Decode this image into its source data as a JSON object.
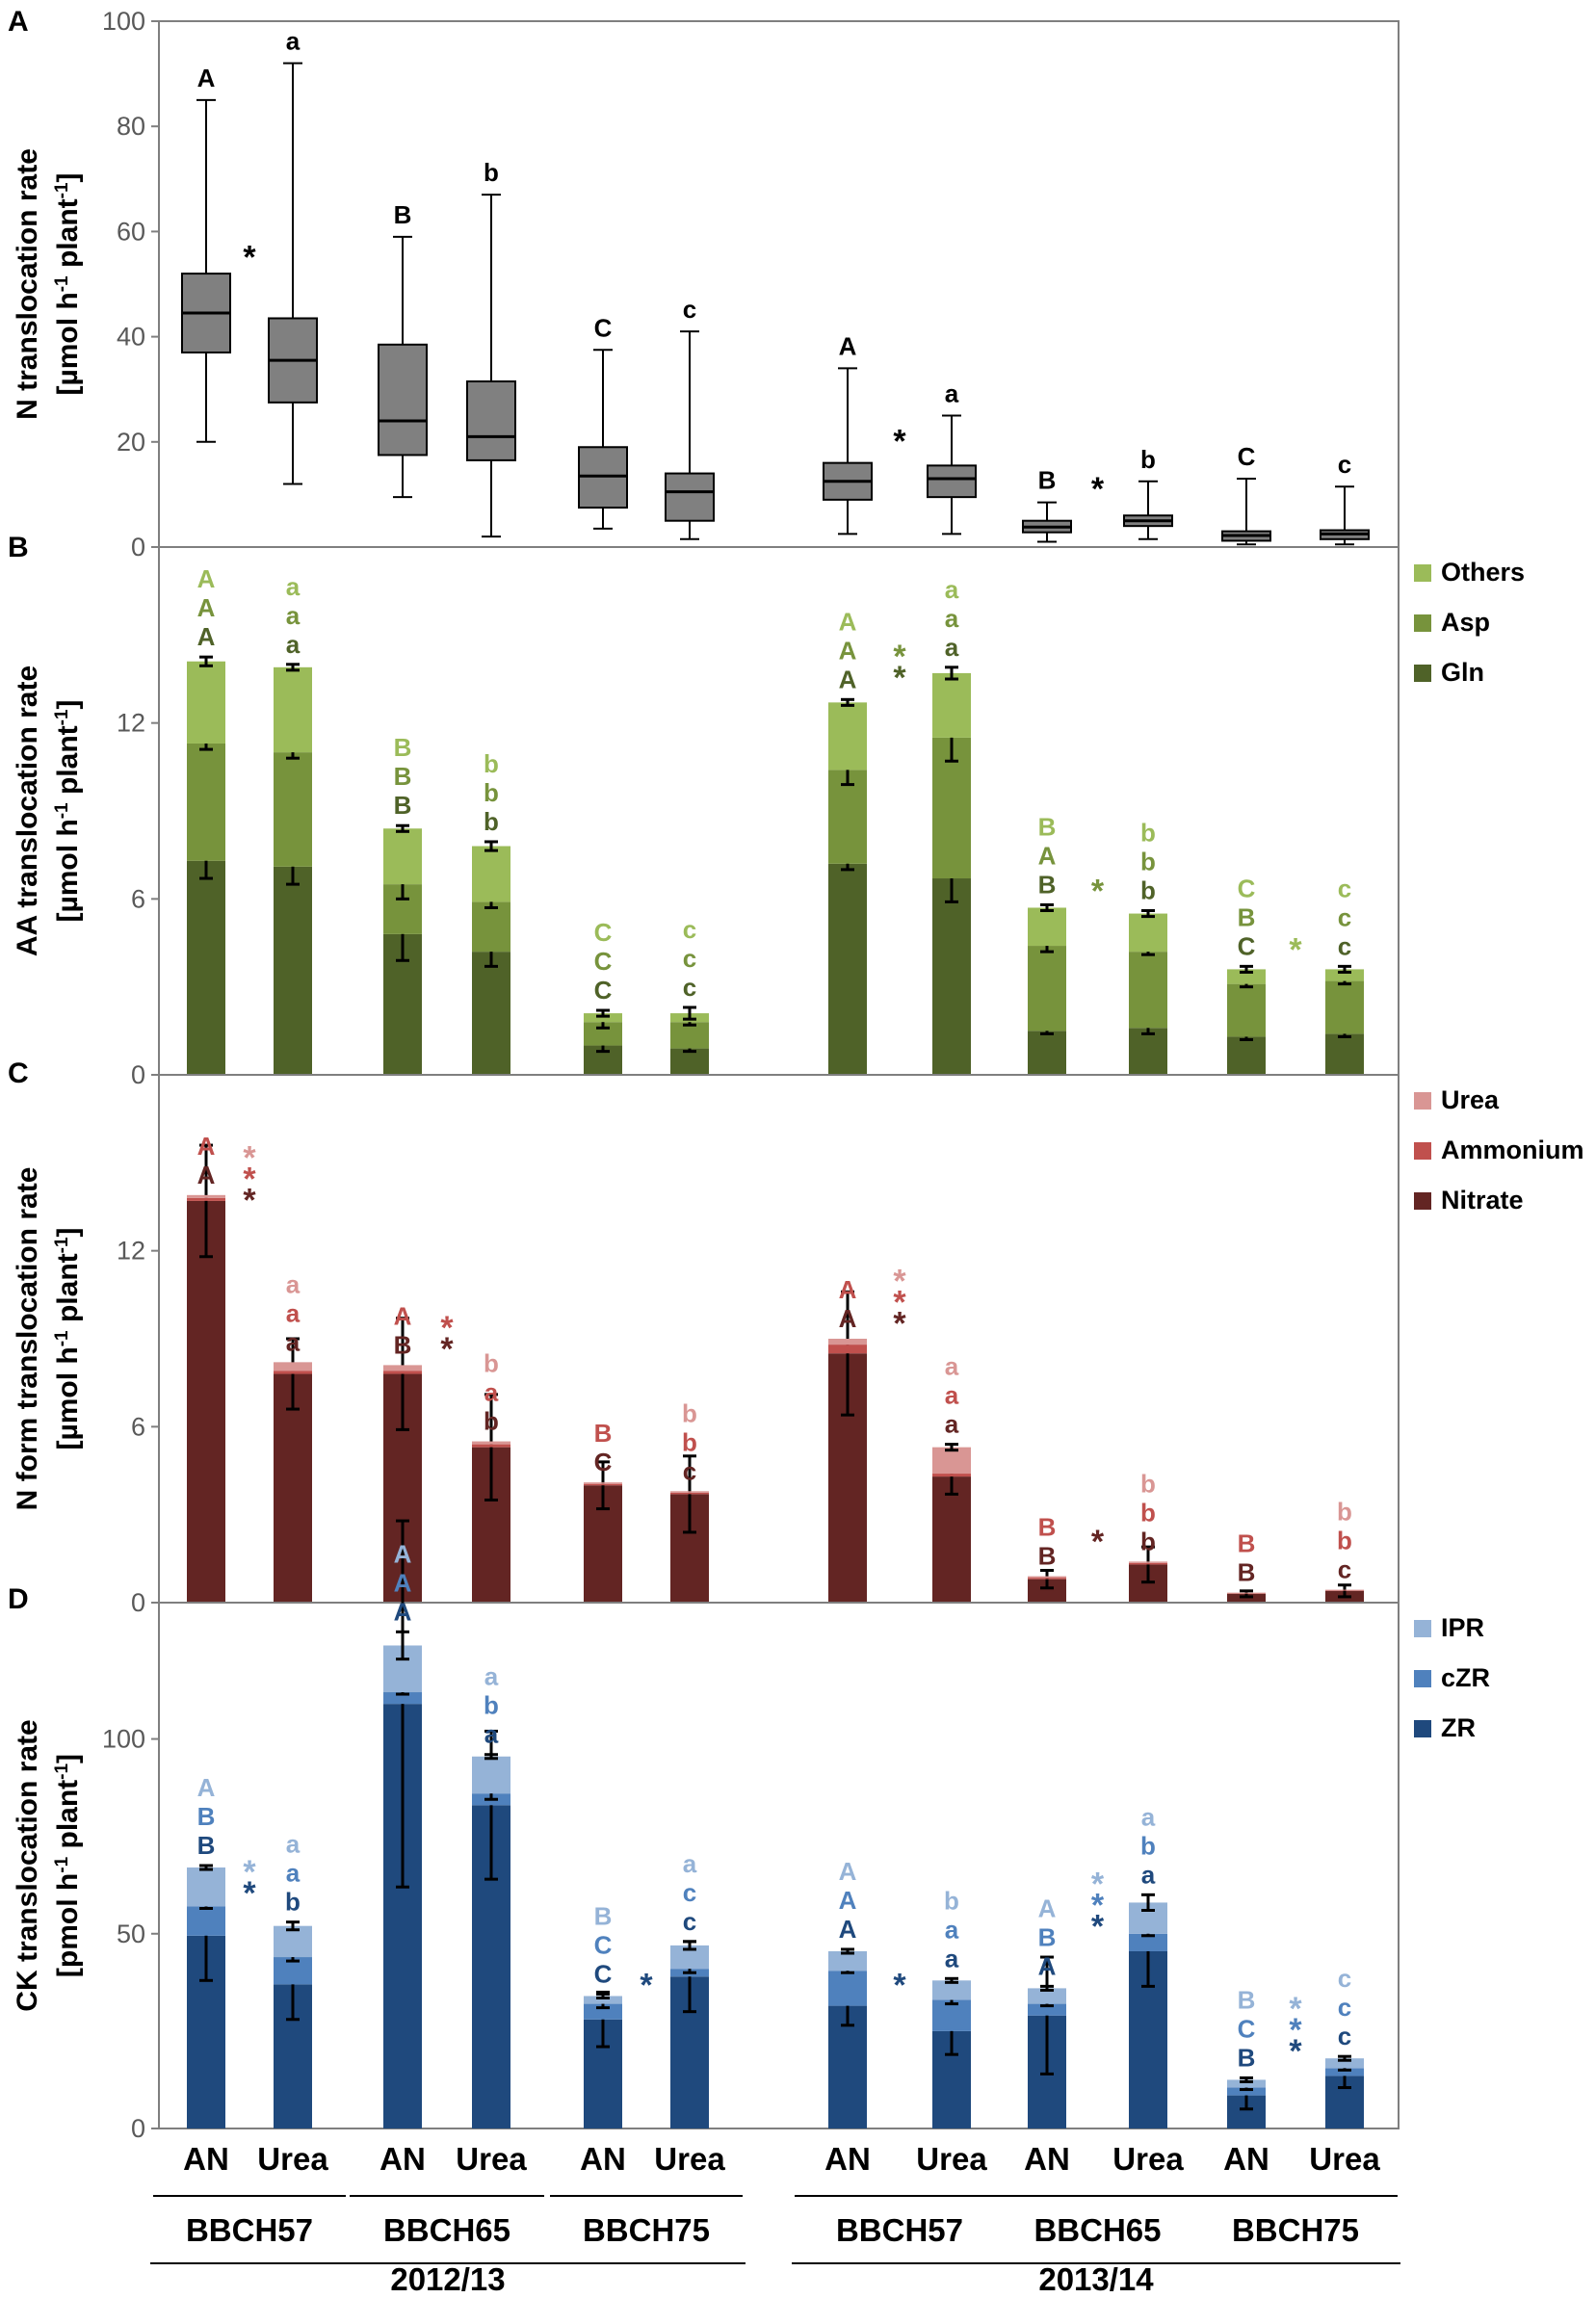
{
  "x_groups": {
    "treatments": [
      "AN",
      "Urea",
      "AN",
      "Urea",
      "AN",
      "Urea",
      "AN",
      "Urea",
      "AN",
      "Urea",
      "AN",
      "Urea"
    ],
    "stages": [
      "BBCH57",
      "BBCH65",
      "BBCH75",
      "BBCH57",
      "BBCH65",
      "BBCH75"
    ],
    "years": [
      "2012/13",
      "2013/14"
    ]
  },
  "chart_data": [
    {
      "panel": "A",
      "type": "box",
      "ylabel": "N translocation rate",
      "yunit_prefix": "[µmol h",
      "yunit_mid": " plant",
      "yunit_sup": "-1",
      "ylim": [
        0,
        100
      ],
      "yticks": [
        0,
        20,
        40,
        60,
        80,
        100
      ],
      "boxes": [
        {
          "min": 20,
          "q1": 37,
          "median": 44.5,
          "q3": 52,
          "max": 85
        },
        {
          "min": 12,
          "q1": 27.5,
          "median": 35.5,
          "q3": 43.5,
          "max": 92
        },
        {
          "min": 9.5,
          "q1": 17.5,
          "median": 24,
          "q3": 38.5,
          "max": 59
        },
        {
          "min": 2,
          "q1": 16.5,
          "median": 21,
          "q3": 31.5,
          "max": 67
        },
        {
          "min": 3.5,
          "q1": 7.5,
          "median": 13.5,
          "q3": 19,
          "max": 37.5
        },
        {
          "min": 1.5,
          "q1": 5,
          "median": 10.5,
          "q3": 14,
          "max": 41
        },
        {
          "min": 2.5,
          "q1": 9,
          "median": 12.5,
          "q3": 16,
          "max": 34
        },
        {
          "min": 2.5,
          "q1": 9.5,
          "median": 13,
          "q3": 15.5,
          "max": 25
        },
        {
          "min": 1,
          "q1": 2.8,
          "median": 3.8,
          "q3": 5,
          "max": 8.5
        },
        {
          "min": 1.5,
          "q1": 4,
          "median": 5,
          "q3": 6,
          "max": 12.5
        },
        {
          "min": 0.5,
          "q1": 1.2,
          "median": 2.2,
          "q3": 3,
          "max": 13
        },
        {
          "min": 0.5,
          "q1": 1.5,
          "median": 2.5,
          "q3": 3.2,
          "max": 11.5
        }
      ],
      "letters": [
        [
          "A"
        ],
        [
          "a"
        ],
        [
          "B"
        ],
        [
          "b"
        ],
        [
          "C"
        ],
        [
          "c"
        ],
        [
          "A"
        ],
        [
          "a"
        ],
        [
          "B"
        ],
        [
          "b"
        ],
        [
          "C"
        ],
        [
          "c"
        ]
      ],
      "stars": [
        {
          "after": 0,
          "y": 53,
          "colors": [
            "#000000"
          ]
        },
        {
          "after": 6,
          "y": 18,
          "colors": [
            "#000000"
          ]
        },
        {
          "after": 8,
          "y": 9,
          "colors": [
            "#000000"
          ]
        }
      ]
    },
    {
      "panel": "B",
      "type": "stacked-bar",
      "ylabel": "AA translocation rate",
      "yunit_prefix": "[µmol h",
      "yunit_mid": " plant",
      "yunit_sup": "-1",
      "ylim": [
        0,
        18
      ],
      "yticks": [
        0,
        6,
        12
      ],
      "series": [
        {
          "name": "Gln",
          "color": "#4f6228",
          "values": [
            7.3,
            7.1,
            4.8,
            4.2,
            1.0,
            0.9,
            7.2,
            6.7,
            1.5,
            1.6,
            1.3,
            1.4
          ],
          "err": [
            0.6,
            0.6,
            0.9,
            0.5,
            0.2,
            0.1,
            0.2,
            0.8,
            0.1,
            0.2,
            0.1,
            0.1
          ]
        },
        {
          "name": "Asp",
          "color": "#77933c",
          "values": [
            4.0,
            3.9,
            1.7,
            1.7,
            0.8,
            0.9,
            3.2,
            4.8,
            2.9,
            2.6,
            1.8,
            1.8
          ],
          "err": [
            0.2,
            0.2,
            0.5,
            0.2,
            0.2,
            0.1,
            0.5,
            0.8,
            0.2,
            0.1,
            0.1,
            0.1
          ]
        },
        {
          "name": "Others",
          "color": "#9bbb59",
          "values": [
            2.8,
            2.9,
            1.9,
            1.9,
            0.3,
            0.3,
            2.3,
            2.2,
            1.3,
            1.3,
            0.5,
            0.4
          ],
          "err": [
            0.15,
            0.1,
            0.1,
            0.15,
            0.1,
            0.2,
            0.1,
            0.2,
            0.1,
            0.1,
            0.1,
            0.1
          ]
        }
      ],
      "letters": [
        [
          "A",
          "A",
          "A"
        ],
        [
          "a",
          "a",
          "a"
        ],
        [
          "B",
          "B",
          "B"
        ],
        [
          "b",
          "b",
          "b"
        ],
        [
          "C",
          "C",
          "C"
        ],
        [
          "c",
          "c",
          "c"
        ],
        [
          "A",
          "A",
          "A"
        ],
        [
          "a",
          "a",
          "a"
        ],
        [
          "B",
          "A",
          "B"
        ],
        [
          "b",
          "b",
          "b"
        ],
        [
          "C",
          "B",
          "C"
        ],
        [
          "c",
          "c",
          "c"
        ]
      ],
      "stars": [
        {
          "after": 6,
          "y": 13.9,
          "colors": [
            "#77933c",
            "#4f6228"
          ]
        },
        {
          "after": 8,
          "y": 5.9,
          "colors": [
            "#77933c"
          ]
        },
        {
          "after": 10,
          "y": 3.9,
          "colors": [
            "#9bbb59"
          ]
        }
      ]
    },
    {
      "panel": "C",
      "type": "stacked-bar",
      "ylabel": "N form translocation rate",
      "yunit_prefix": "[µmol h",
      "yunit_mid": " plant",
      "yunit_sup": "-1",
      "ylim": [
        0,
        18
      ],
      "yticks": [
        0,
        6,
        12
      ],
      "series": [
        {
          "name": "Nitrate",
          "color": "#632523",
          "values": [
            13.7,
            7.8,
            7.8,
            5.3,
            4.0,
            3.7,
            8.5,
            4.3,
            0.8,
            1.3,
            0.3,
            0.4
          ],
          "err": [
            1.9,
            1.2,
            1.9,
            1.8,
            0.8,
            1.3,
            2.1,
            0.6,
            0.3,
            0.6,
            0.1,
            0.2
          ]
        },
        {
          "name": "Ammonium",
          "color": "#c0504d",
          "values": [
            0.1,
            0.1,
            0.1,
            0.1,
            0.05,
            0.05,
            0.3,
            0.1,
            0.05,
            0.05,
            0.02,
            0.02
          ],
          "err": [
            0,
            0,
            0,
            0,
            0,
            0,
            0,
            0,
            0,
            0,
            0,
            0
          ]
        },
        {
          "name": "Urea",
          "color": "#d99694",
          "values": [
            0.1,
            0.3,
            0.2,
            0.1,
            0.05,
            0.05,
            0.2,
            0.9,
            0.05,
            0.05,
            0.02,
            0.02
          ],
          "err": [
            0,
            0,
            0,
            0,
            0,
            0,
            0,
            0.1,
            0,
            0,
            0,
            0
          ]
        }
      ],
      "letters": [
        [],
        [
          "a",
          "a",
          "a"
        ],
        [
          "B",
          "A"
        ],
        [
          "b",
          "a",
          "b"
        ],
        [
          "C",
          "B"
        ],
        [
          "c",
          "b",
          "b"
        ],
        [
          "A",
          "A"
        ],
        [
          "a",
          "a",
          "a"
        ],
        [
          "B",
          "B"
        ],
        [
          "b",
          "b",
          "b"
        ],
        [
          "B",
          "B"
        ],
        [
          "c",
          "b",
          "b"
        ]
      ],
      "lettersA": [
        "A",
        "A"
      ],
      "stars": [
        {
          "after": 0,
          "y": 14.8,
          "colors": [
            "#d99694",
            "#c0504d",
            "#632523"
          ]
        },
        {
          "after": 2,
          "y": 9.0,
          "colors": [
            "#c0504d",
            "#632523"
          ]
        },
        {
          "after": 6,
          "y": 10.6,
          "colors": [
            "#d99694",
            "#c0504d",
            "#632523"
          ]
        },
        {
          "after": 8,
          "y": 1.7,
          "colors": [
            "#632523"
          ]
        }
      ]
    },
    {
      "panel": "D",
      "type": "stacked-bar",
      "ylabel": "CK translocation rate",
      "yunit_prefix": "[pmol h",
      "yunit_mid": " plant",
      "yunit_sup": "-1",
      "ylim": [
        0,
        135
      ],
      "yticks": [
        0,
        50,
        100
      ],
      "series": [
        {
          "name": "ZR",
          "color": "#1f497d",
          "values": [
            49.5,
            37,
            109,
            83,
            28,
            39,
            31.5,
            25,
            29,
            45.5,
            8.5,
            13.5
          ],
          "err": [
            11.5,
            9,
            47,
            19,
            7,
            9,
            5,
            6,
            15,
            9,
            3.5,
            3
          ]
        },
        {
          "name": "cZR",
          "color": "#4f81bd",
          "values": [
            7.5,
            7,
            3,
            3,
            4,
            2,
            9,
            8,
            3,
            4.5,
            2,
            2
          ],
          "err": [
            0.5,
            1,
            0.5,
            1.5,
            1,
            1,
            0.5,
            1,
            0.5,
            0.5,
            0.5,
            0.5
          ]
        },
        {
          "name": "IPR",
          "color": "#95b3d7",
          "values": [
            10,
            8,
            12,
            9.5,
            2,
            6,
            5,
            5,
            4,
            8,
            2,
            2.5
          ],
          "err": [
            0.5,
            1,
            3.5,
            0.5,
            0.5,
            1,
            0.5,
            0.5,
            0.5,
            2,
            0.5,
            0.5
          ]
        }
      ],
      "letters": [
        [
          "B",
          "B",
          "A"
        ],
        [
          "b",
          "a",
          "a"
        ],
        [
          "A",
          "A",
          "A"
        ],
        [
          "a",
          "b",
          "a"
        ],
        [
          "C",
          "C",
          "B"
        ],
        [
          "c",
          "c",
          "a"
        ],
        [
          "A",
          "A",
          "A"
        ],
        [
          "a",
          "a",
          "b"
        ],
        [
          "A",
          "B",
          "A"
        ],
        [
          "a",
          "b",
          "a"
        ],
        [
          "B",
          "C",
          "B"
        ],
        [
          "c",
          "c",
          "c"
        ]
      ],
      "stars": [
        {
          "after": 0,
          "y": 63,
          "colors": [
            "#95b3d7",
            "#1f497d"
          ]
        },
        {
          "after": 4,
          "y": 34,
          "colors": [
            "#1f497d"
          ]
        },
        {
          "after": 6,
          "y": 34,
          "colors": [
            "#1f497d"
          ]
        },
        {
          "after": 8,
          "y": 60,
          "colors": [
            "#95b3d7",
            "#4f81bd",
            "#1f497d"
          ]
        },
        {
          "after": 10,
          "y": 28,
          "colors": [
            "#95b3d7",
            "#4f81bd",
            "#1f497d"
          ]
        }
      ]
    }
  ]
}
